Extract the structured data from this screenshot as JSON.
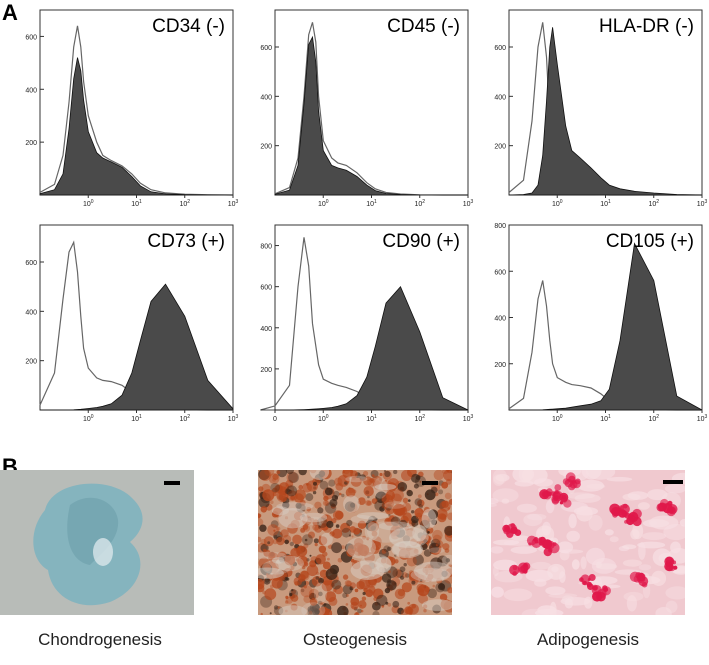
{
  "figure": {
    "panel_a_letter": "A",
    "panel_b_letter": "B"
  },
  "chart_data": [
    {
      "type": "area",
      "title": "CD34 (-)",
      "x_scale": "log",
      "x_ticks": [
        "10^0",
        "10^1",
        "10^2",
        "10^3"
      ],
      "y_ticks": [
        200,
        400,
        600
      ],
      "ylim": [
        0,
        700
      ],
      "series": [
        {
          "style": "open-outline",
          "x": [
            0.1,
            0.2,
            0.3,
            0.4,
            0.5,
            0.6,
            0.7,
            0.8,
            1,
            1.5,
            2,
            3,
            5,
            8,
            12,
            20,
            40,
            100,
            300,
            1000
          ],
          "y": [
            10,
            40,
            150,
            350,
            560,
            640,
            560,
            430,
            300,
            200,
            150,
            130,
            110,
            80,
            45,
            20,
            8,
            3,
            1,
            0
          ]
        },
        {
          "style": "filled",
          "x": [
            0.1,
            0.2,
            0.3,
            0.4,
            0.5,
            0.6,
            0.7,
            0.8,
            1,
            1.5,
            2,
            3,
            5,
            8,
            12,
            20,
            40,
            100,
            300,
            1000
          ],
          "y": [
            5,
            20,
            80,
            250,
            440,
            520,
            470,
            360,
            240,
            160,
            140,
            125,
            105,
            70,
            35,
            12,
            4,
            1,
            0,
            0
          ]
        }
      ]
    },
    {
      "type": "area",
      "title": "CD45 (-)",
      "x_scale": "log",
      "x_ticks": [
        "10^0",
        "10^1",
        "10^2",
        "10^3"
      ],
      "y_ticks": [
        200,
        400,
        600
      ],
      "ylim": [
        0,
        750
      ],
      "series": [
        {
          "style": "open-outline",
          "x": [
            0.1,
            0.2,
            0.3,
            0.4,
            0.5,
            0.6,
            0.7,
            0.8,
            1,
            1.5,
            2,
            3,
            5,
            8,
            12,
            20,
            40,
            100,
            300,
            1000
          ],
          "y": [
            5,
            30,
            150,
            400,
            650,
            700,
            620,
            400,
            220,
            150,
            130,
            120,
            90,
            50,
            25,
            10,
            4,
            1,
            0,
            0
          ]
        },
        {
          "style": "filled",
          "x": [
            0.1,
            0.2,
            0.3,
            0.4,
            0.5,
            0.6,
            0.7,
            0.8,
            1,
            1.5,
            2,
            3,
            5,
            8,
            12,
            20,
            40,
            100,
            300,
            1000
          ],
          "y": [
            3,
            20,
            120,
            370,
            610,
            640,
            540,
            340,
            180,
            120,
            110,
            100,
            75,
            40,
            18,
            6,
            2,
            0,
            0,
            0
          ]
        }
      ]
    },
    {
      "type": "area",
      "title": "HLA-DR (-)",
      "x_scale": "log",
      "x_ticks": [
        "10^0",
        "10^1",
        "10^2",
        "10^3"
      ],
      "y_ticks": [
        200,
        400,
        600
      ],
      "ylim": [
        0,
        750
      ],
      "series": [
        {
          "style": "open-outline",
          "x": [
            0.1,
            0.2,
            0.3,
            0.4,
            0.5,
            0.6,
            0.7,
            0.8,
            1,
            1.5,
            2,
            3,
            5,
            8,
            12,
            20,
            40,
            100,
            300,
            1000
          ],
          "y": [
            10,
            60,
            300,
            600,
            700,
            560,
            300,
            120,
            40,
            15,
            8,
            5,
            3,
            1,
            0,
            0,
            0,
            0,
            0,
            0
          ]
        },
        {
          "style": "filled",
          "x": [
            0.1,
            0.2,
            0.3,
            0.4,
            0.5,
            0.6,
            0.7,
            0.8,
            1,
            1.5,
            2,
            3,
            5,
            8,
            12,
            20,
            40,
            100,
            300,
            1000
          ],
          "y": [
            0,
            2,
            8,
            40,
            160,
            380,
            600,
            680,
            530,
            280,
            180,
            150,
            110,
            70,
            40,
            25,
            15,
            8,
            2,
            0
          ]
        }
      ]
    },
    {
      "type": "area",
      "title": "CD73 (+)",
      "x_scale": "log",
      "x_ticks": [
        "10^0",
        "10^1",
        "10^2",
        "10^3"
      ],
      "y_ticks": [
        200,
        400,
        600
      ],
      "ylim": [
        0,
        750
      ],
      "series": [
        {
          "style": "open-outline",
          "x": [
            0.1,
            0.2,
            0.3,
            0.4,
            0.5,
            0.6,
            0.7,
            0.8,
            1,
            1.5,
            2,
            3,
            5,
            8,
            12,
            20,
            40,
            100,
            300,
            1000
          ],
          "y": [
            20,
            150,
            450,
            640,
            680,
            560,
            380,
            250,
            170,
            130,
            120,
            115,
            100,
            70,
            40,
            15,
            5,
            1,
            0,
            0
          ]
        },
        {
          "style": "filled",
          "x": [
            0.1,
            0.2,
            0.3,
            0.4,
            0.5,
            0.6,
            0.7,
            0.8,
            1,
            1.5,
            2,
            3,
            5,
            8,
            12,
            20,
            40,
            100,
            300,
            1000
          ],
          "y": [
            0,
            0,
            0,
            0,
            1,
            2,
            3,
            4,
            6,
            10,
            15,
            25,
            60,
            150,
            280,
            440,
            510,
            380,
            120,
            5
          ]
        }
      ]
    },
    {
      "type": "area",
      "title": "CD90 (+)",
      "x_scale": "log",
      "x_ticks": [
        "0",
        "10^0",
        "10^1",
        "10^2",
        "10^3"
      ],
      "y_ticks": [
        200,
        400,
        600,
        800
      ],
      "ylim": [
        0,
        900
      ],
      "series": [
        {
          "style": "open-outline",
          "x": [
            0.05,
            0.1,
            0.2,
            0.3,
            0.4,
            0.5,
            0.6,
            0.8,
            1,
            1.5,
            2,
            3,
            5,
            8,
            12,
            20,
            40,
            100,
            300,
            1000
          ],
          "y": [
            0,
            20,
            120,
            600,
            840,
            700,
            420,
            220,
            150,
            130,
            120,
            110,
            90,
            60,
            30,
            12,
            4,
            1,
            0,
            0
          ]
        },
        {
          "style": "filled",
          "x": [
            0.05,
            0.1,
            0.2,
            0.3,
            0.4,
            0.5,
            0.6,
            0.8,
            1,
            1.5,
            2,
            3,
            5,
            8,
            12,
            20,
            40,
            100,
            300,
            1000
          ],
          "y": [
            0,
            0,
            0,
            1,
            2,
            3,
            4,
            6,
            8,
            12,
            18,
            30,
            70,
            160,
            310,
            520,
            600,
            380,
            60,
            0
          ]
        }
      ]
    },
    {
      "type": "area",
      "title": "CD105 (+)",
      "x_scale": "log",
      "x_ticks": [
        "10^0",
        "10^1",
        "10^2",
        "10^3"
      ],
      "y_ticks": [
        200,
        400,
        600,
        800
      ],
      "ylim": [
        0,
        800
      ],
      "series": [
        {
          "style": "open-outline",
          "x": [
            0.1,
            0.2,
            0.3,
            0.4,
            0.5,
            0.6,
            0.7,
            0.8,
            1,
            1.5,
            2,
            3,
            5,
            8,
            12,
            20,
            40,
            100,
            300,
            1000
          ],
          "y": [
            5,
            50,
            250,
            480,
            560,
            450,
            300,
            200,
            140,
            120,
            110,
            105,
            95,
            70,
            40,
            15,
            5,
            1,
            0,
            0
          ]
        },
        {
          "style": "filled",
          "x": [
            0.1,
            0.2,
            0.3,
            0.4,
            0.5,
            0.6,
            0.7,
            0.8,
            1,
            1.5,
            2,
            3,
            5,
            8,
            12,
            20,
            40,
            100,
            300,
            1000
          ],
          "y": [
            0,
            0,
            0,
            0,
            1,
            2,
            3,
            4,
            5,
            8,
            12,
            18,
            25,
            40,
            90,
            300,
            720,
            560,
            60,
            0
          ]
        }
      ]
    }
  ],
  "panel_b": {
    "images": [
      {
        "caption": "Chondrogenesis",
        "colors": {
          "background": "#b8bcb8",
          "tissue": "#7fb2bf",
          "tissue_dark": "#5c8f9f"
        }
      },
      {
        "caption": "Osteogenesis",
        "colors": {
          "background": "#c89a7e",
          "stain": "#b5471d",
          "dark": "#3a2418"
        }
      },
      {
        "caption": "Adipogenesis",
        "colors": {
          "background": "#f0c9cf",
          "stain": "#e0184a"
        }
      }
    ]
  }
}
